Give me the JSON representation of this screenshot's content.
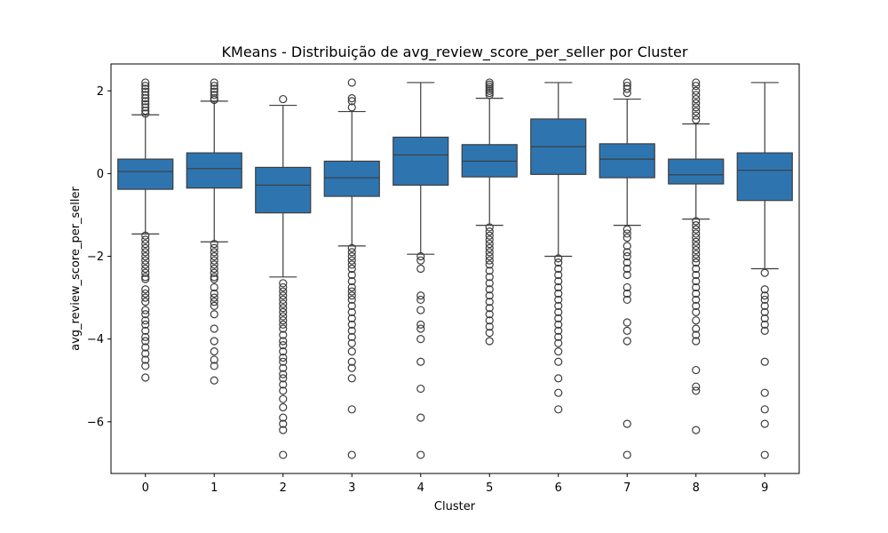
{
  "chart_data": {
    "type": "boxplot",
    "title": "KMeans - Distribuição de avg_review_score_per_seller por Cluster",
    "xlabel": "Cluster",
    "ylabel": "avg_review_score_per_seller",
    "categories": [
      "0",
      "1",
      "2",
      "3",
      "4",
      "5",
      "6",
      "7",
      "8",
      "9"
    ],
    "ylim": [
      -7.25,
      2.65
    ],
    "yticks": [
      {
        "value": 2,
        "label": "2"
      },
      {
        "value": 0,
        "label": "0"
      },
      {
        "value": -2,
        "label": "−2"
      },
      {
        "value": -4,
        "label": "−4"
      },
      {
        "value": -6,
        "label": "−6"
      }
    ],
    "grid": false,
    "color": "#2e75b0",
    "boxes": [
      {
        "q1": -0.38,
        "median": 0.05,
        "q3": 0.35,
        "whisker_low": -1.46,
        "whisker_high": 1.42,
        "outliers_high": [
          2.2,
          2.12,
          2.05,
          1.98,
          1.9,
          1.82,
          1.75,
          1.68,
          1.6,
          1.52,
          1.45
        ],
        "outliers_low": [
          -1.5,
          -1.6,
          -1.7,
          -1.8,
          -1.9,
          -2.0,
          -2.1,
          -2.2,
          -2.3,
          -2.4,
          -2.5,
          -2.55,
          -2.8,
          -2.9,
          -3.0,
          -3.1,
          -3.3,
          -3.4,
          -3.55,
          -3.65,
          -3.8,
          -3.95,
          -4.05,
          -4.2,
          -4.35,
          -4.5,
          -4.65,
          -4.93
        ]
      },
      {
        "q1": -0.35,
        "median": 0.12,
        "q3": 0.5,
        "whisker_low": -1.65,
        "whisker_high": 1.75,
        "outliers_high": [
          2.2,
          2.12,
          2.05,
          1.98,
          1.9,
          1.82,
          1.78
        ],
        "outliers_low": [
          -1.7,
          -1.8,
          -1.9,
          -2.0,
          -2.1,
          -2.2,
          -2.3,
          -2.4,
          -2.5,
          -2.55,
          -2.75,
          -2.9,
          -3.0,
          -3.1,
          -3.2,
          -3.4,
          -3.75,
          -4.05,
          -4.3,
          -4.5,
          -4.65,
          -5.0
        ]
      },
      {
        "q1": -0.95,
        "median": -0.28,
        "q3": 0.15,
        "whisker_low": -2.5,
        "whisker_high": 1.65,
        "outliers_high": [
          1.8
        ],
        "outliers_low": [
          -2.65,
          -2.75,
          -2.85,
          -2.95,
          -3.05,
          -3.15,
          -3.25,
          -3.35,
          -3.45,
          -3.55,
          -3.65,
          -3.75,
          -3.9,
          -4.05,
          -4.15,
          -4.3,
          -4.45,
          -4.55,
          -4.7,
          -4.85,
          -4.95,
          -5.1,
          -5.25,
          -5.45,
          -5.65,
          -5.9,
          -6.05,
          -6.2,
          -6.8
        ]
      },
      {
        "q1": -0.55,
        "median": -0.1,
        "q3": 0.3,
        "whisker_low": -1.75,
        "whisker_high": 1.5,
        "outliers_high": [
          2.2,
          1.82,
          1.75,
          1.6
        ],
        "outliers_low": [
          -1.8,
          -1.9,
          -2.0,
          -2.1,
          -2.2,
          -2.3,
          -2.45,
          -2.6,
          -2.75,
          -2.85,
          -2.95,
          -3.05,
          -3.2,
          -3.35,
          -3.5,
          -3.65,
          -3.8,
          -3.95,
          -4.1,
          -4.3,
          -4.55,
          -4.7,
          -4.95,
          -5.7,
          -6.8
        ]
      },
      {
        "q1": -0.28,
        "median": 0.45,
        "q3": 0.88,
        "whisker_low": -1.95,
        "whisker_high": 2.2,
        "outliers_high": [],
        "outliers_low": [
          -2.0,
          -2.1,
          -2.3,
          -2.95,
          -3.05,
          -3.3,
          -3.65,
          -3.75,
          -4.0,
          -4.55,
          -5.2,
          -5.9,
          -6.8
        ]
      },
      {
        "q1": -0.08,
        "median": 0.3,
        "q3": 0.7,
        "whisker_low": -1.25,
        "whisker_high": 1.82,
        "outliers_high": [
          2.2,
          2.15,
          2.1,
          2.05,
          2.0,
          1.95,
          1.9
        ],
        "outliers_low": [
          -1.3,
          -1.4,
          -1.5,
          -1.6,
          -1.7,
          -1.8,
          -1.9,
          -2.0,
          -2.1,
          -2.2,
          -2.35,
          -2.5,
          -2.65,
          -2.8,
          -2.95,
          -3.1,
          -3.25,
          -3.4,
          -3.55,
          -3.7,
          -3.85,
          -4.05
        ]
      },
      {
        "q1": -0.02,
        "median": 0.65,
        "q3": 1.32,
        "whisker_low": -2.0,
        "whisker_high": 2.2,
        "outliers_high": [],
        "outliers_low": [
          -2.05,
          -2.15,
          -2.3,
          -2.45,
          -2.6,
          -2.75,
          -2.9,
          -3.05,
          -3.2,
          -3.35,
          -3.5,
          -3.65,
          -3.8,
          -3.95,
          -4.1,
          -4.3,
          -4.55,
          -4.95,
          -5.3,
          -5.7
        ]
      },
      {
        "q1": -0.1,
        "median": 0.35,
        "q3": 0.72,
        "whisker_low": -1.25,
        "whisker_high": 1.8,
        "outliers_high": [
          2.2,
          2.12,
          2.05,
          1.95
        ],
        "outliers_low": [
          -1.35,
          -1.45,
          -1.55,
          -1.75,
          -1.9,
          -2.0,
          -2.15,
          -2.3,
          -2.45,
          -2.75,
          -2.9,
          -3.05,
          -3.6,
          -3.8,
          -4.05,
          -6.05,
          -6.8
        ]
      },
      {
        "q1": -0.25,
        "median": -0.03,
        "q3": 0.35,
        "whisker_low": -1.1,
        "whisker_high": 1.2,
        "outliers_high": [
          2.2,
          2.12,
          2.0,
          1.9,
          1.8,
          1.7,
          1.6,
          1.5,
          1.4,
          1.3
        ],
        "outliers_low": [
          -1.15,
          -1.25,
          -1.35,
          -1.45,
          -1.55,
          -1.65,
          -1.75,
          -1.85,
          -1.95,
          -2.05,
          -2.15,
          -2.3,
          -2.45,
          -2.6,
          -2.75,
          -2.9,
          -3.05,
          -3.2,
          -3.35,
          -3.55,
          -3.75,
          -3.9,
          -4.05,
          -4.75,
          -5.15,
          -5.25,
          -6.2
        ]
      },
      {
        "q1": -0.65,
        "median": 0.08,
        "q3": 0.5,
        "whisker_low": -2.3,
        "whisker_high": 2.2,
        "outliers_high": [],
        "outliers_low": [
          -2.4,
          -2.8,
          -2.95,
          -3.05,
          -3.2,
          -3.35,
          -3.5,
          -3.65,
          -3.8,
          -4.55,
          -5.3,
          -5.7,
          -6.05,
          -6.8
        ]
      }
    ]
  }
}
